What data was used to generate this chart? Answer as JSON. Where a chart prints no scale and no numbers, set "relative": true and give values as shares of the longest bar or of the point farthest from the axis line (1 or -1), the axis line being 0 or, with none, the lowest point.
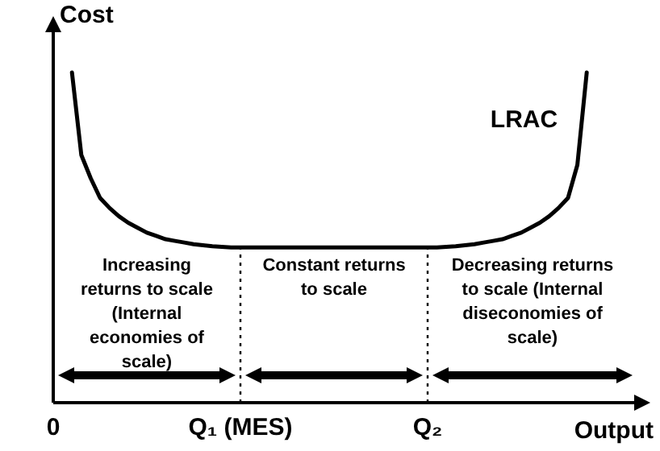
{
  "chart_data": {
    "type": "line",
    "relative": true,
    "xlabel": "Output",
    "ylabel": "Cost",
    "categories": [
      "0",
      null,
      null,
      null,
      null,
      null,
      null,
      null,
      null,
      null,
      null,
      null,
      null,
      null,
      null,
      null,
      null,
      null,
      null,
      null,
      "Q₁ (MES)",
      null,
      null,
      null,
      null,
      null,
      null,
      null,
      null,
      null,
      null,
      null,
      null,
      null,
      null,
      null,
      null,
      null,
      null,
      null,
      "Q₂",
      null,
      null,
      null,
      null,
      null,
      null,
      null,
      null,
      null,
      null,
      null,
      null,
      null,
      null,
      null,
      null,
      null,
      null,
      null,
      null
    ],
    "series": [
      {
        "name": "LRAC",
        "color": "#000000",
        "values": [
          null,
          null,
          1,
          0.75,
          0.68,
          0.62,
          0.59,
          0.565,
          0.545,
          0.53,
          0.515,
          0.505,
          0.495,
          0.49,
          0.485,
          0.48,
          0.477,
          0.474,
          0.472,
          0.47,
          0.47,
          0.47,
          0.47,
          0.47,
          0.47,
          0.47,
          0.47,
          0.47,
          0.47,
          0.47,
          0.47,
          0.47,
          0.47,
          0.47,
          0.47,
          0.47,
          0.47,
          0.47,
          0.47,
          0.47,
          0.47,
          0.47,
          0.472,
          0.474,
          0.477,
          0.48,
          0.485,
          0.49,
          0.495,
          0.505,
          0.515,
          0.53,
          0.545,
          0.565,
          0.59,
          0.62,
          0.72,
          1,
          null,
          null,
          null
        ]
      }
    ],
    "ref_lines": [
      {
        "axis": "x",
        "value": "Q₁ (MES)",
        "line_style": "dotted"
      },
      {
        "axis": "x",
        "value": "Q₂",
        "line_style": "dotted"
      }
    ],
    "annotations": [
      "Increasing returns to scale (Internal economies of scale)",
      "Constant returns to scale",
      "Decreasing returns to scale (Internal diseconomies of scale)"
    ],
    "grid": false,
    "legend": false,
    "marker": "none",
    "line_style": "solid"
  }
}
